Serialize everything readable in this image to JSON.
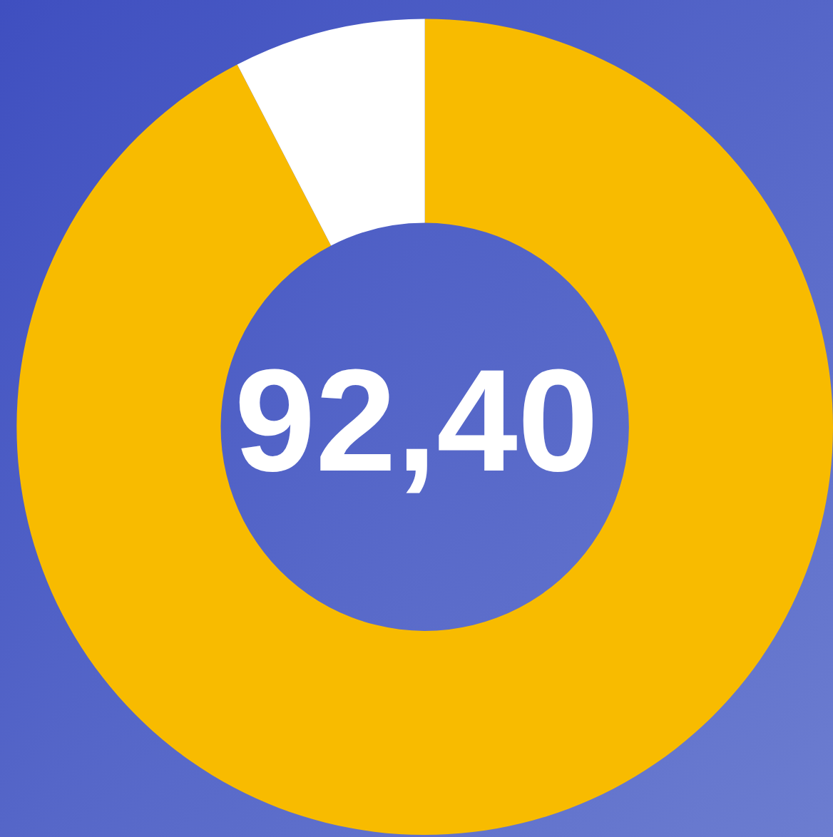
{
  "chart_data": {
    "type": "donut",
    "categories": [
      null,
      null
    ],
    "values": [
      92.4,
      7.6
    ],
    "colors": [
      "#f8bb00",
      "#ffffff"
    ],
    "annotations": [
      "92,40"
    ]
  }
}
